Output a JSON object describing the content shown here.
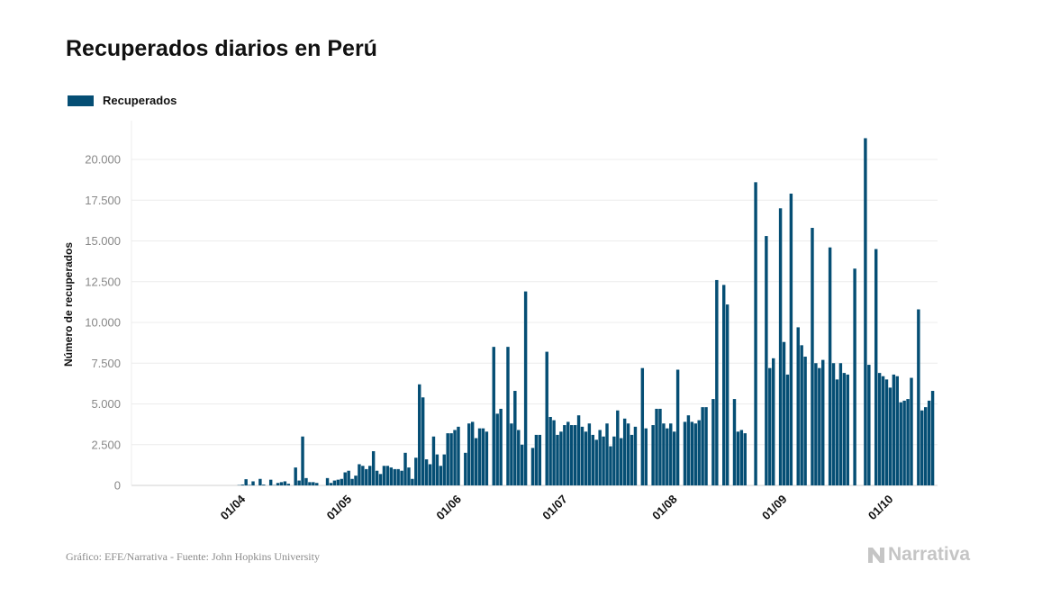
{
  "chart_data": {
    "type": "bar",
    "title": "Recuperados diarios en Perú",
    "ylabel": "Número de recuperados",
    "xlabel": "",
    "legend": {
      "placement": "top-left"
    },
    "grid": true,
    "ylim": [
      0,
      23500
    ],
    "yticks": [
      0,
      2500,
      5000,
      7500,
      10000,
      12500,
      15000,
      17500,
      20000
    ],
    "ytick_labels": [
      "0",
      "2.500",
      "5.000",
      "7.500",
      "10.000",
      "12.500",
      "15.000",
      "17.500",
      "20.000"
    ],
    "xtick_labels": [
      "01/04",
      "01/05",
      "01/06",
      "01/07",
      "01/08",
      "01/09",
      "01/10"
    ],
    "xtick_dates": [
      "2020-04-01",
      "2020-05-01",
      "2020-06-01",
      "2020-07-01",
      "2020-08-01",
      "2020-09-01",
      "2020-10-01"
    ],
    "x_start": "2020-03-06",
    "series": [
      {
        "name": "Recuperados",
        "color": "#054e74",
        "values": [
          0,
          0,
          0,
          0,
          0,
          0,
          0,
          0,
          0,
          0,
          0,
          0,
          0,
          0,
          0,
          0,
          0,
          0,
          0,
          0,
          0,
          0,
          0,
          0,
          0,
          20,
          50,
          380,
          30,
          250,
          0,
          400,
          50,
          0,
          350,
          20,
          150,
          200,
          250,
          100,
          0,
          1100,
          300,
          3000,
          450,
          200,
          200,
          150,
          0,
          0,
          450,
          150,
          300,
          350,
          400,
          800,
          900,
          400,
          600,
          1300,
          1200,
          1000,
          1200,
          2100,
          900,
          700,
          1200,
          1200,
          1100,
          1000,
          1000,
          900,
          2000,
          1100,
          400,
          1700,
          6200,
          5400,
          1600,
          1300,
          3000,
          1900,
          1200,
          1900,
          3200,
          3200,
          3400,
          3600,
          0,
          2000,
          3800,
          3900,
          2900,
          3500,
          3500,
          3300,
          0,
          8500,
          4400,
          4700,
          0,
          8500,
          3800,
          5800,
          3400,
          2500,
          11900,
          0,
          2300,
          3100,
          3100,
          0,
          8200,
          4200,
          4000,
          3100,
          3300,
          3700,
          3900,
          3700,
          3700,
          4300,
          3600,
          3300,
          3800,
          3100,
          2800,
          3400,
          3000,
          3800,
          2400,
          3000,
          4600,
          2900,
          4100,
          3800,
          3100,
          3600,
          0,
          7200,
          3500,
          0,
          3700,
          4700,
          4700,
          3800,
          3500,
          3800,
          3300,
          7100,
          0,
          3900,
          4300,
          3900,
          3800,
          4000,
          4800,
          4800,
          0,
          5300,
          12600,
          0,
          12300,
          11100,
          0,
          5300,
          3300,
          3400,
          3200,
          0,
          0,
          18600,
          0,
          0,
          15300,
          7200,
          7800,
          0,
          17000,
          8800,
          6800,
          17900,
          0,
          9700,
          8600,
          7900,
          0,
          15800,
          7500,
          7200,
          7700,
          0,
          14600,
          7500,
          6500,
          7500,
          6900,
          6800,
          0,
          13300,
          0,
          0,
          21300,
          7400,
          0,
          14500,
          6900,
          6700,
          6500,
          6000,
          6800,
          6700,
          5100,
          5200,
          5300,
          6600,
          0,
          10800,
          4600,
          4800,
          5200,
          5800
        ]
      }
    ]
  },
  "footer": {
    "source": "Gráfico: EFE/Narrativa - Fuente: John Hopkins University",
    "brand": "Narrativa"
  }
}
